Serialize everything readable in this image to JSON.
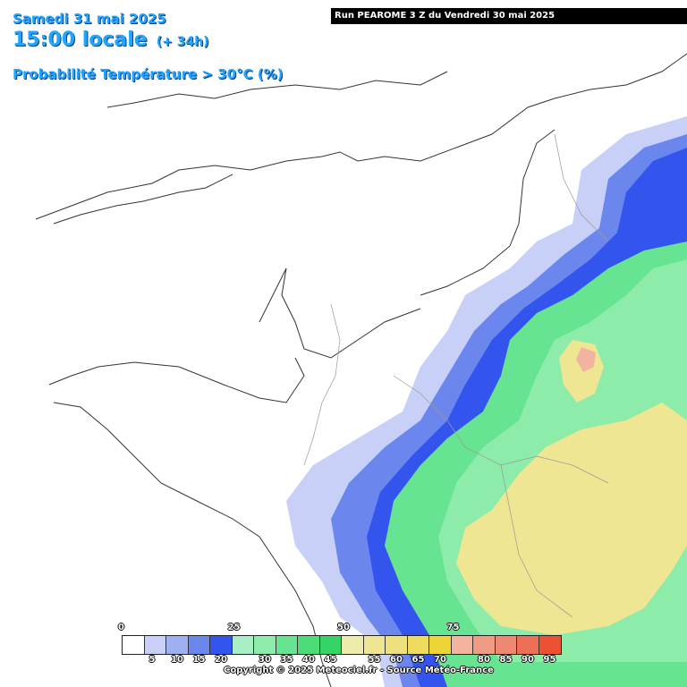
{
  "header": {
    "date": "Samedi 31 mai 2025",
    "time": "15:00 locale",
    "lead": "(+ 34h)",
    "parameter": "Probabilité Température > 30°C (%)"
  },
  "run_banner": "Run PEAROME 3 Z du Vendredi 30 mai 2025",
  "legend": {
    "colors": [
      "#ffffff",
      "#c8d0f8",
      "#9fb0f0",
      "#6b87ee",
      "#3355ee",
      "#a8efc6",
      "#8eecaa",
      "#66e491",
      "#4cdc77",
      "#34d566",
      "#eeecaa",
      "#eee692",
      "#eee07c",
      "#eedc5e",
      "#eed436",
      "#f2b4a0",
      "#f09c84",
      "#ee8870",
      "#ec6f56",
      "#ee5032"
    ],
    "major_labels": [
      "0",
      "25",
      "50",
      "75"
    ],
    "minor_labels": [
      "5",
      "10",
      "15",
      "20",
      "30",
      "35",
      "40",
      "45",
      "55",
      "60",
      "65",
      "70",
      "80",
      "85",
      "90",
      "95"
    ]
  },
  "copyright": "Copyright © 2025 Meteociel.fr - Source Météo-France"
}
